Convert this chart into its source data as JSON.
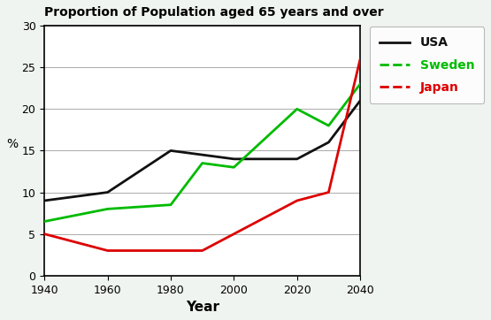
{
  "title": "Proportion of Population aged 65 years and over",
  "xlabel": "Year",
  "ylabel": "%",
  "years": [
    1940,
    1960,
    1980,
    1990,
    2000,
    2020,
    2030,
    2040
  ],
  "usa": [
    9,
    10,
    15,
    14.5,
    14,
    14,
    16,
    21
  ],
  "sweden": [
    6.5,
    8,
    8.5,
    13.5,
    13,
    20,
    18,
    23
  ],
  "japan": [
    5,
    3,
    3,
    3,
    5,
    9,
    10,
    26
  ],
  "usa_color": "#111111",
  "sweden_color": "#00bb00",
  "japan_color": "#dd0000",
  "ylim": [
    0,
    30
  ],
  "xlim": [
    1940,
    2040
  ],
  "xticks": [
    1940,
    1960,
    1980,
    2000,
    2020,
    2040
  ],
  "yticks": [
    0,
    5,
    10,
    15,
    20,
    25,
    30
  ],
  "bg_color": "#f0f4f0",
  "plot_bg": "#ffffff",
  "legend_labels": [
    "USA",
    "Sweden",
    "Japan"
  ],
  "legend_colors": [
    "#111111",
    "#00bb00",
    "#dd0000"
  ],
  "linewidth": 2.0
}
